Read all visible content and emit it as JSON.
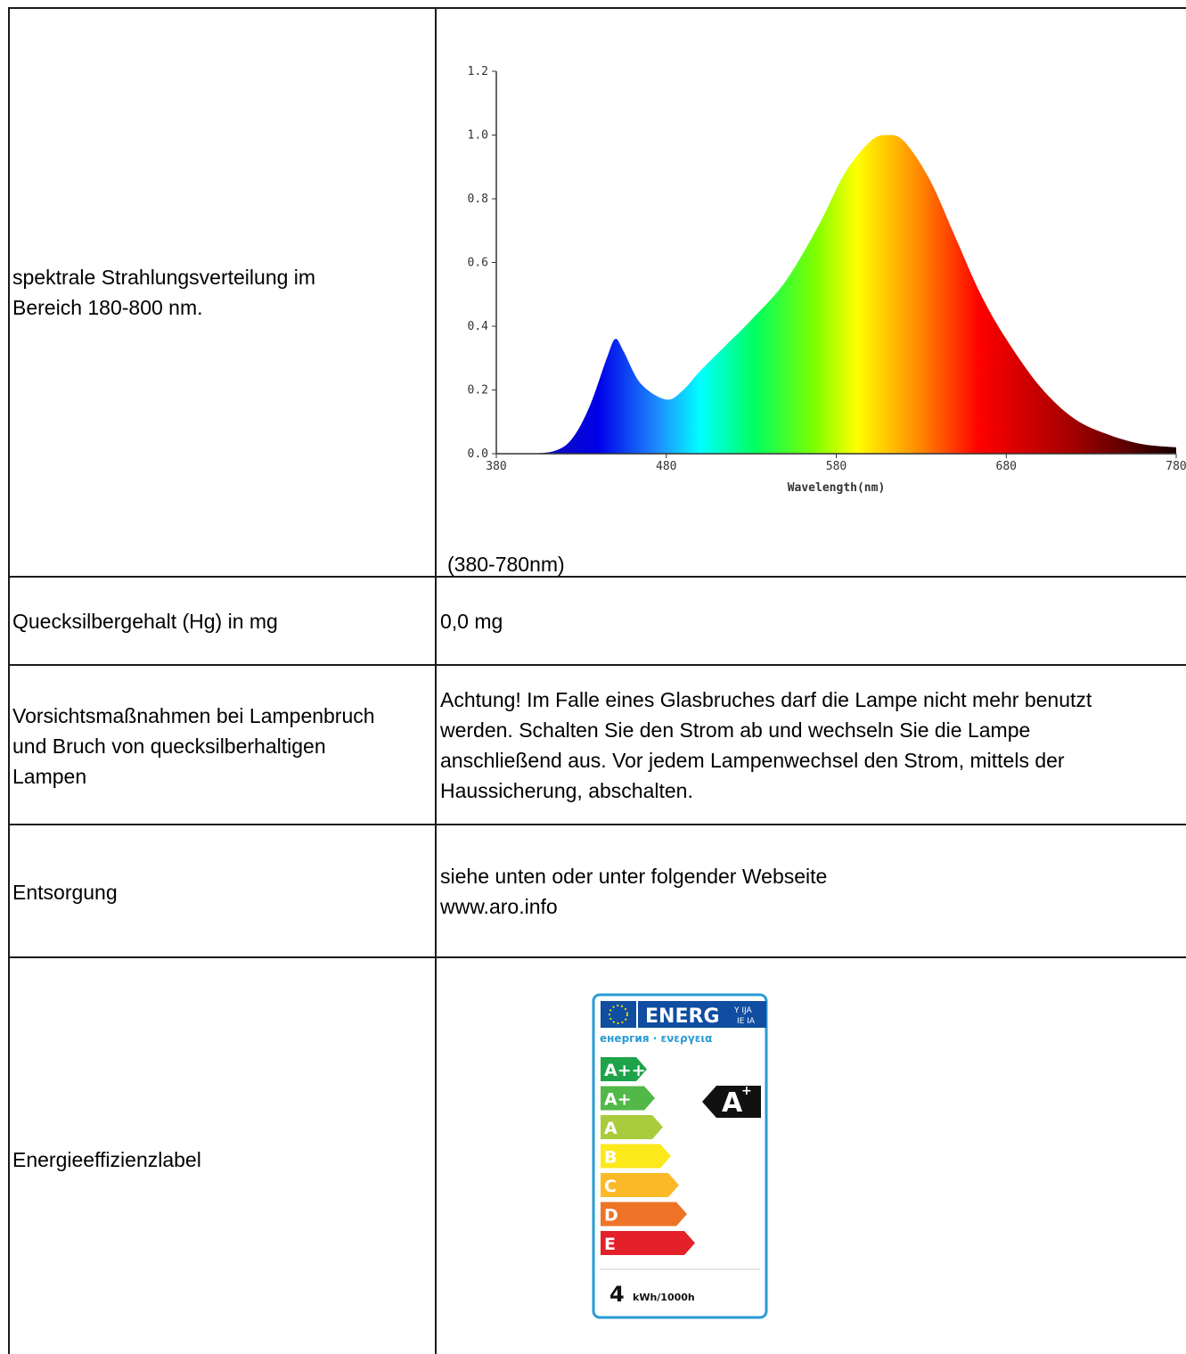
{
  "rows": [
    {
      "label": "spektrale Strahlungsverteilung im\nBereich 180-800 nm.",
      "value": "(380-780nm)"
    },
    {
      "label": "Quecksilbergehalt (Hg) in mg",
      "value": "0,0 mg"
    },
    {
      "label": "Vorsichtsmaßnahmen bei Lampenbruch\nund Bruch von quecksilberhaltigen\nLampen",
      "value": "Achtung! Im Falle eines Glasbruches darf die Lampe nicht mehr benutzt\nwerden. Schalten Sie den Strom ab und wechseln Sie die Lampe\nanschließend aus. Vor jedem Lampenwechsel den Strom, mittels der\nHaussicherung, abschalten."
    },
    {
      "label": "Entsorgung",
      "value": "siehe unten oder unter folgender Webseite\nwww.aro.info"
    },
    {
      "label": "Energieeffizienzlabel",
      "value": ""
    }
  ],
  "chart_data": {
    "type": "area",
    "xlabel": "Wavelength(nm)",
    "ylabel": "",
    "xlim": [
      380,
      780
    ],
    "ylim": [
      0,
      1.2
    ],
    "x_ticks": [
      "380",
      "480",
      "580",
      "680",
      "780"
    ],
    "y_ticks": [
      "0.0",
      "0.2",
      "0.4",
      "0.6",
      "0.8",
      "1.0",
      "1.2"
    ],
    "series": [
      {
        "x": [
          380,
          400,
          415,
          425,
          435,
          445,
          450,
          455,
          465,
          480,
          490,
          500,
          515,
          530,
          550,
          570,
          585,
          600,
          610,
          620,
          635,
          650,
          665,
          680,
          700,
          720,
          740,
          760,
          780
        ],
        "values": [
          0.0,
          0.0,
          0.01,
          0.05,
          0.15,
          0.3,
          0.36,
          0.32,
          0.22,
          0.17,
          0.2,
          0.26,
          0.34,
          0.42,
          0.54,
          0.72,
          0.88,
          0.98,
          1.0,
          0.98,
          0.86,
          0.68,
          0.5,
          0.36,
          0.21,
          0.11,
          0.06,
          0.03,
          0.02
        ]
      }
    ]
  },
  "energy_label": {
    "header": "ENERG",
    "header_suffix": "Y IJA\nIE IA",
    "subtitle": "енергия · ενεργεια",
    "classes": [
      {
        "label": "A++",
        "color": "#1ea34a"
      },
      {
        "label": "A+",
        "color": "#52b848"
      },
      {
        "label": "A",
        "color": "#a9cc3c"
      },
      {
        "label": "B",
        "color": "#fbe91b"
      },
      {
        "label": "C",
        "color": "#fbb927"
      },
      {
        "label": "D",
        "color": "#ee7326"
      },
      {
        "label": "E",
        "color": "#e4202a"
      }
    ],
    "rating": "A+",
    "consumption_value": "4",
    "consumption_unit": "kWh/1000h",
    "frame_color": "#2a9bd6",
    "header_color": "#0f4ea1"
  }
}
